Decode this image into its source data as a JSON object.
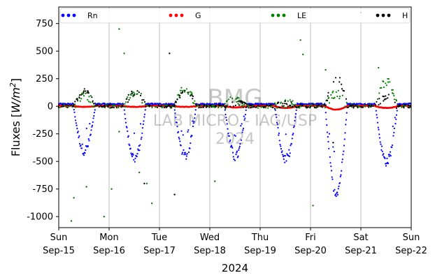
{
  "chart_data": {
    "type": "scatter",
    "title": "",
    "ylabel": "Fluxes [W/m²]",
    "ylabel_main": "Fluxes [",
    "ylabel_unit": "W/m",
    "ylabel_sup": "2",
    "ylabel_close": "]",
    "xlabel": "2024",
    "ylim": [
      -1100,
      900
    ],
    "y_ticks": [
      750,
      500,
      250,
      0,
      -250,
      -500,
      -750,
      -1000
    ],
    "x_range_days": [
      0,
      7
    ],
    "x_ticks": [
      {
        "day": 0,
        "line1": "Sun",
        "line2": "Sep-15"
      },
      {
        "day": 1,
        "line1": "Mon",
        "line2": "Sep-16"
      },
      {
        "day": 2,
        "line1": "Tue",
        "line2": "Sep-17"
      },
      {
        "day": 3,
        "line1": "Wed",
        "line2": "Sep-18"
      },
      {
        "day": 4,
        "line1": "Thu",
        "line2": "Sep-19"
      },
      {
        "day": 5,
        "line1": "Fri",
        "line2": "Sep-20"
      },
      {
        "day": 6,
        "line1": "Sat",
        "line2": "Sep-21"
      },
      {
        "day": 7,
        "line1": "Sun",
        "line2": "Sep-22"
      }
    ],
    "grid": "vertical",
    "legend_position": "top",
    "watermark": [
      "BMG",
      "LAB MICRO - IAG/USP",
      "2024"
    ],
    "series": [
      {
        "name": "Rn",
        "color": "#0000ff",
        "daily_min": [
          -400,
          -470,
          -450,
          -460,
          -480,
          -780,
          -500
        ],
        "night": 20,
        "peak_hour": 12
      },
      {
        "name": "G",
        "color": "#ff0000",
        "daily_min": [
          -5,
          -5,
          -5,
          -10,
          -15,
          -30,
          -15
        ],
        "night": 10,
        "peak_hour": 14
      },
      {
        "name": "LE",
        "color": "#008000",
        "daily_max": [
          100,
          130,
          150,
          60,
          25,
          110,
          220
        ],
        "spread": 80,
        "outliers": [
          [
            0.25,
            -1040
          ],
          [
            0.3,
            -830
          ],
          [
            0.9,
            -1000
          ],
          [
            1.2,
            700
          ],
          [
            1.3,
            480
          ],
          [
            1.2,
            -230
          ],
          [
            1.75,
            -700
          ],
          [
            1.85,
            -880
          ],
          [
            3.1,
            -680
          ],
          [
            4.8,
            600
          ],
          [
            4.85,
            470
          ],
          [
            5.05,
            -900
          ],
          [
            5.3,
            330
          ],
          [
            6.35,
            350
          ],
          [
            0.55,
            -730
          ],
          [
            1.05,
            -750
          ],
          [
            1.6,
            -600
          ]
        ]
      },
      {
        "name": "H",
        "color": "#000000",
        "daily_max": [
          130,
          120,
          140,
          30,
          20,
          270,
          80
        ],
        "spread": 60,
        "outliers": [
          [
            2.2,
            480
          ],
          [
            2.3,
            -800
          ],
          [
            1.7,
            -700
          ],
          [
            6.0,
            850
          ],
          [
            5.45,
            -330
          ]
        ]
      }
    ]
  }
}
